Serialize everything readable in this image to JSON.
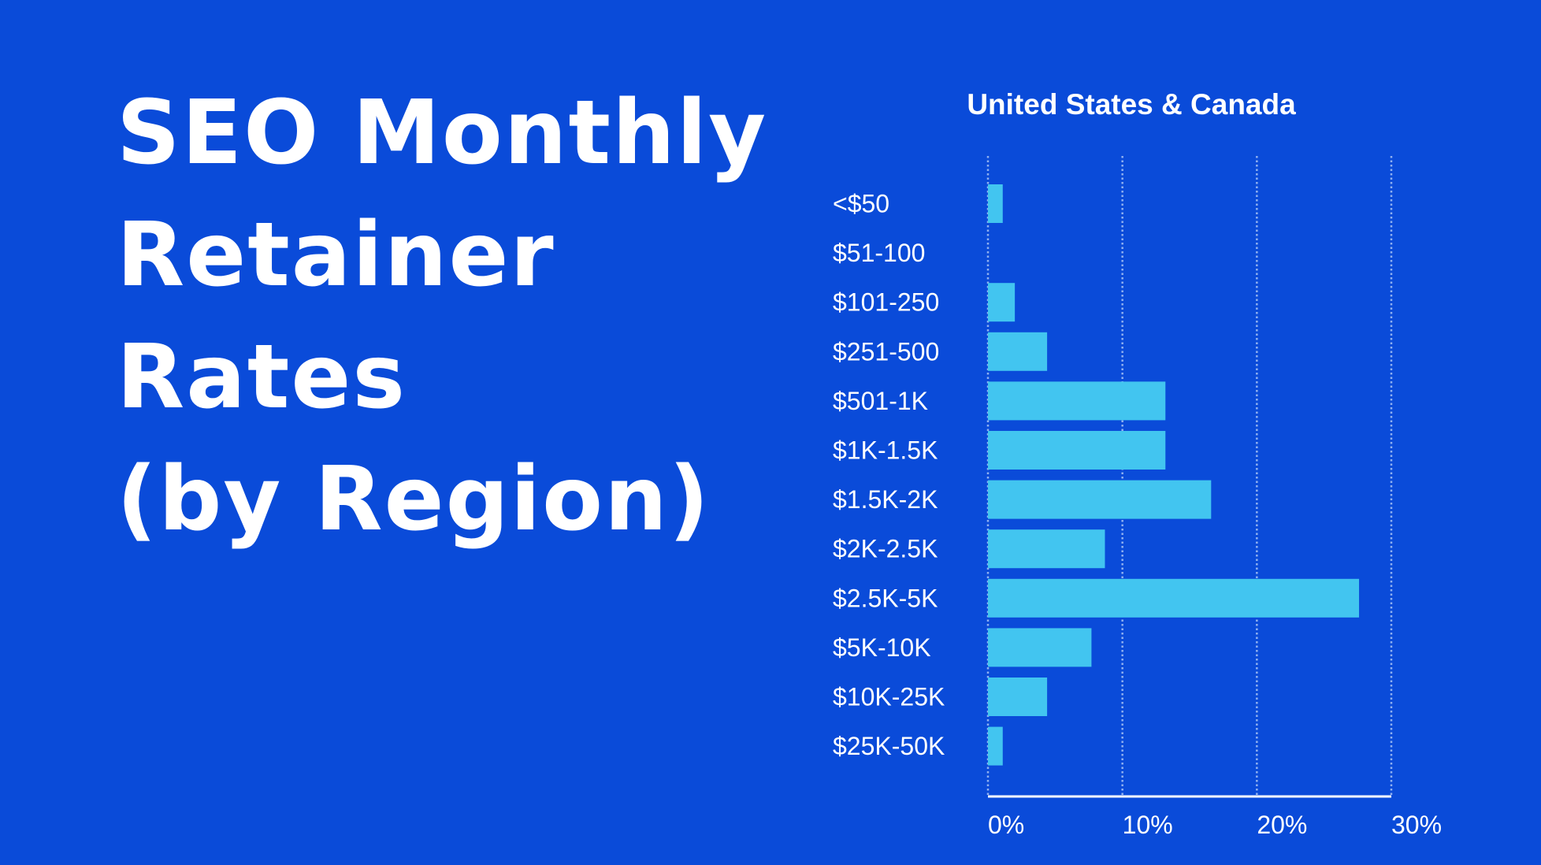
{
  "headline": [
    "SEO Monthly",
    "Retainer",
    "Rates",
    "(by Region)"
  ],
  "colors": {
    "background": "#0a4bd9",
    "bar": "#42c5f0",
    "text": "#ffffff",
    "grid": "#8fb0f0"
  },
  "chart_data": {
    "type": "bar",
    "orientation": "horizontal",
    "title": "United States & Canada",
    "categories": [
      "<$50",
      "$51-100",
      "$101-250",
      "$251-500",
      "$501-1K",
      "$1K-1.5K",
      "$1.5K-2K",
      "$2K-2.5K",
      "$2.5K-5K",
      "$5K-10K",
      "$10K-25K",
      "$25K-50K"
    ],
    "values": [
      1.1,
      0,
      2.0,
      4.4,
      13.2,
      13.2,
      16.6,
      8.7,
      27.6,
      7.7,
      4.4,
      1.1
    ],
    "unit": "%",
    "xlim": [
      0,
      30
    ],
    "xticks": [
      "0%",
      "10%",
      "20%",
      "30%"
    ],
    "grid": "vertical dotted",
    "xlabel": "",
    "ylabel": ""
  }
}
